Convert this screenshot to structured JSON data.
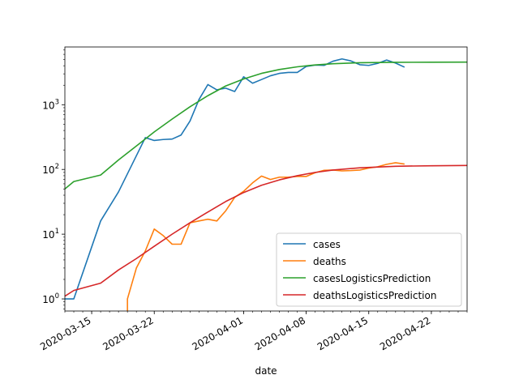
{
  "chart_data": {
    "type": "line",
    "xlabel": "date",
    "ylabel": "",
    "yscale": "log",
    "xlim": [
      "2020-03-12",
      "2020-04-26"
    ],
    "ylim": [
      0.65,
      7800
    ],
    "grid": false,
    "legend_position": "lower-right",
    "x_ticks": [
      "2020-03-15",
      "2020-03-22",
      "2020-04-01",
      "2020-04-08",
      "2020-04-15",
      "2020-04-22"
    ],
    "y_ticks": [
      {
        "value": 1,
        "base": "10",
        "exp": "0"
      },
      {
        "value": 10,
        "base": "10",
        "exp": "1"
      },
      {
        "value": 100,
        "base": "10",
        "exp": "2"
      },
      {
        "value": 1000,
        "base": "10",
        "exp": "3"
      }
    ],
    "series": [
      {
        "name": "cases",
        "color": "#1f77b4",
        "points": [
          [
            "2020-03-12",
            1
          ],
          [
            "2020-03-13",
            1
          ],
          [
            "2020-03-16",
            16
          ],
          [
            "2020-03-18",
            45
          ],
          [
            "2020-03-21",
            310
          ],
          [
            "2020-03-22",
            280
          ],
          [
            "2020-03-23",
            290
          ],
          [
            "2020-03-24",
            295
          ],
          [
            "2020-03-25",
            340
          ],
          [
            "2020-03-26",
            560
          ],
          [
            "2020-03-27",
            1200
          ],
          [
            "2020-03-28",
            2050
          ],
          [
            "2020-03-29",
            1700
          ],
          [
            "2020-03-30",
            1800
          ],
          [
            "2020-03-31",
            1600
          ],
          [
            "2020-04-01",
            2700
          ],
          [
            "2020-04-02",
            2150
          ],
          [
            "2020-04-03",
            2450
          ],
          [
            "2020-04-04",
            2800
          ],
          [
            "2020-04-05",
            3050
          ],
          [
            "2020-04-06",
            3150
          ],
          [
            "2020-04-07",
            3150
          ],
          [
            "2020-04-08",
            3900
          ],
          [
            "2020-04-09",
            4100
          ],
          [
            "2020-04-10",
            4050
          ],
          [
            "2020-04-11",
            4700
          ],
          [
            "2020-04-12",
            5100
          ],
          [
            "2020-04-13",
            4750
          ],
          [
            "2020-04-14",
            4150
          ],
          [
            "2020-04-15",
            4050
          ],
          [
            "2020-04-16",
            4350
          ],
          [
            "2020-04-17",
            4900
          ],
          [
            "2020-04-18",
            4400
          ],
          [
            "2020-04-19",
            3800
          ]
        ]
      },
      {
        "name": "deaths",
        "color": "#ff7f0e",
        "points": [
          [
            "2020-03-19",
            0.5
          ],
          [
            "2020-03-19",
            1
          ],
          [
            "2020-03-20",
            3
          ],
          [
            "2020-03-21",
            5.5
          ],
          [
            "2020-03-22",
            12
          ],
          [
            "2020-03-23",
            9.5
          ],
          [
            "2020-03-24",
            7
          ],
          [
            "2020-03-25",
            7
          ],
          [
            "2020-03-26",
            15
          ],
          [
            "2020-03-27",
            16
          ],
          [
            "2020-03-28",
            17
          ],
          [
            "2020-03-29",
            16
          ],
          [
            "2020-03-30",
            23
          ],
          [
            "2020-03-31",
            37
          ],
          [
            "2020-04-01",
            46
          ],
          [
            "2020-04-02",
            62
          ],
          [
            "2020-04-03",
            79
          ],
          [
            "2020-04-04",
            70
          ],
          [
            "2020-04-05",
            76
          ],
          [
            "2020-04-06",
            76
          ],
          [
            "2020-04-07",
            78
          ],
          [
            "2020-04-08",
            78
          ],
          [
            "2020-04-09",
            89
          ],
          [
            "2020-04-10",
            97
          ],
          [
            "2020-04-11",
            98
          ],
          [
            "2020-04-12",
            95
          ],
          [
            "2020-04-13",
            96
          ],
          [
            "2020-04-14",
            98
          ],
          [
            "2020-04-15",
            105
          ],
          [
            "2020-04-16",
            110
          ],
          [
            "2020-04-17",
            120
          ],
          [
            "2020-04-18",
            127
          ],
          [
            "2020-04-19",
            121
          ]
        ]
      },
      {
        "name": "casesLogisticsPrediction",
        "color": "#2ca02c",
        "points": [
          [
            "2020-03-12",
            50
          ],
          [
            "2020-03-13",
            65
          ],
          [
            "2020-03-16",
            82
          ],
          [
            "2020-03-18",
            140
          ],
          [
            "2020-03-20",
            230
          ],
          [
            "2020-03-22",
            380
          ],
          [
            "2020-03-24",
            600
          ],
          [
            "2020-03-26",
            930
          ],
          [
            "2020-03-28",
            1380
          ],
          [
            "2020-03-30",
            1950
          ],
          [
            "2020-04-01",
            2500
          ],
          [
            "2020-04-03",
            3050
          ],
          [
            "2020-04-05",
            3500
          ],
          [
            "2020-04-07",
            3850
          ],
          [
            "2020-04-09",
            4120
          ],
          [
            "2020-04-11",
            4300
          ],
          [
            "2020-04-14",
            4450
          ],
          [
            "2020-04-18",
            4520
          ],
          [
            "2020-04-22",
            4540
          ],
          [
            "2020-04-26",
            4550
          ]
        ]
      },
      {
        "name": "deathsLogisticsPrediction",
        "color": "#d62728",
        "points": [
          [
            "2020-03-12",
            1.1
          ],
          [
            "2020-03-13",
            1.35
          ],
          [
            "2020-03-16",
            1.75
          ],
          [
            "2020-03-18",
            2.8
          ],
          [
            "2020-03-20",
            4.2
          ],
          [
            "2020-03-22",
            6.5
          ],
          [
            "2020-03-24",
            10
          ],
          [
            "2020-03-26",
            15
          ],
          [
            "2020-03-28",
            22
          ],
          [
            "2020-03-30",
            32
          ],
          [
            "2020-04-01",
            44
          ],
          [
            "2020-04-03",
            57
          ],
          [
            "2020-04-05",
            69
          ],
          [
            "2020-04-07",
            80
          ],
          [
            "2020-04-09",
            90
          ],
          [
            "2020-04-11",
            98
          ],
          [
            "2020-04-14",
            106
          ],
          [
            "2020-04-18",
            112
          ],
          [
            "2020-04-22",
            114
          ],
          [
            "2020-04-26",
            115
          ]
        ]
      }
    ]
  }
}
